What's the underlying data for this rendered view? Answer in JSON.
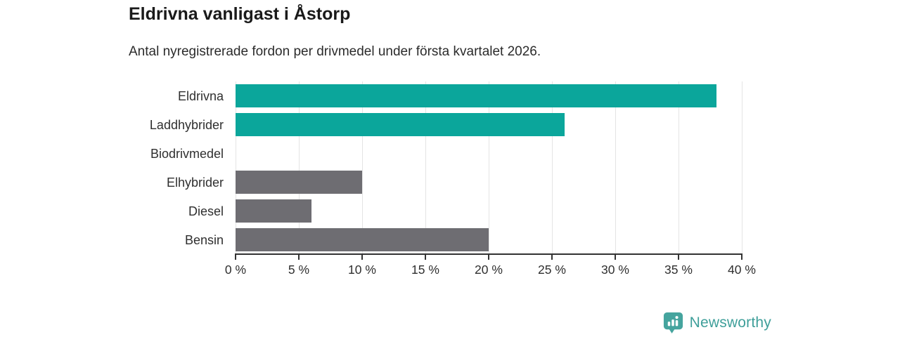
{
  "header": {
    "title": "Eldrivna vanligast i Åstorp",
    "subtitle": "Antal nyregistrerade fordon per drivmedel under första kvartalet 2026."
  },
  "chart_data": {
    "type": "bar",
    "orientation": "horizontal",
    "title": "Eldrivna vanligast i Åstorp",
    "subtitle": "Antal nyregistrerade fordon per drivmedel under första kvartalet 2026.",
    "categories": [
      "Eldrivna",
      "Laddhybrider",
      "Biodrivmedel",
      "Elhybrider",
      "Diesel",
      "Bensin"
    ],
    "values": [
      38,
      26,
      0,
      10,
      6,
      20
    ],
    "unit": "%",
    "xlabel": "",
    "ylabel": "",
    "xlim": [
      0,
      40
    ],
    "x_tick_values": [
      0,
      5,
      10,
      15,
      20,
      25,
      30,
      35,
      40
    ],
    "x_tick_labels": [
      "0 %",
      "5 %",
      "10 %",
      "15 %",
      "20 %",
      "25 %",
      "30 %",
      "35 %",
      "40 %"
    ],
    "grid": true,
    "legend": false,
    "bar_colors": [
      "#0ba69b",
      "#0ba69b",
      "#6e6d72",
      "#6e6d72",
      "#6e6d72",
      "#6e6d72"
    ],
    "highlight_color": "#0ba69b",
    "default_color": "#6e6d72",
    "gridline_color": "#e4e4e4",
    "axis_color": "#333333",
    "label_color": "#2f2f2f"
  },
  "footer": {
    "brand": "Newsworthy",
    "brand_color": "#3f9f9a",
    "icon": "newsworthy-speech-bubble-bar-chart",
    "icon_color": "#45a49e"
  }
}
